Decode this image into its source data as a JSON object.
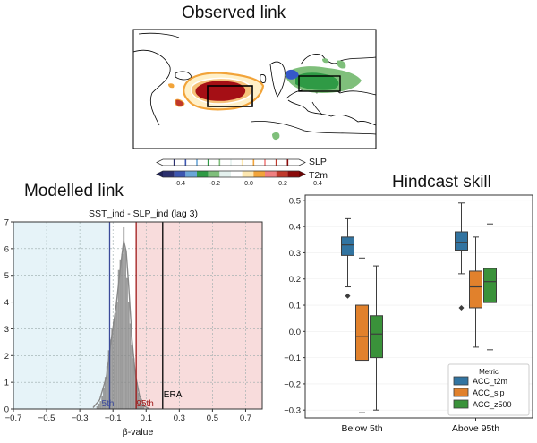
{
  "titles": {
    "observed": "Observed link",
    "modelled": "Modelled link",
    "hindcast": "Hindcast skill"
  },
  "map_panel": {
    "colorbar_labels": [
      "SLP",
      "T2m"
    ],
    "colorbar_ticks": [
      "-0.4",
      "-0.2",
      "0.0",
      "0.2",
      "0.4"
    ],
    "colors": {
      "warm": "#a50f15",
      "orange": "#f2a43a",
      "blue": "#3558c9",
      "green": "#2f9a45",
      "lightgreen": "#7fbf7b"
    }
  },
  "chart_data": [
    {
      "type": "histogram",
      "title": "SST_ind - SLP_ind (lag 3)",
      "xlabel": "β-value",
      "ylabel": "",
      "xlim": [
        -0.7,
        0.8
      ],
      "ylim": [
        0,
        7
      ],
      "xticks": [
        -0.7,
        -0.5,
        -0.3,
        -0.1,
        0.1,
        0.3,
        0.5,
        0.7
      ],
      "yticks": [
        0,
        1,
        2,
        3,
        4,
        5,
        6,
        7
      ],
      "bins": [
        {
          "x": -0.195,
          "h": 0.1
        },
        {
          "x": -0.185,
          "h": 0.2
        },
        {
          "x": -0.175,
          "h": 0.3
        },
        {
          "x": -0.165,
          "h": 0.5
        },
        {
          "x": -0.155,
          "h": 0.8
        },
        {
          "x": -0.145,
          "h": 1.2
        },
        {
          "x": -0.135,
          "h": 1.6
        },
        {
          "x": -0.125,
          "h": 2.2
        },
        {
          "x": -0.115,
          "h": 2.6
        },
        {
          "x": -0.105,
          "h": 3.0
        },
        {
          "x": -0.095,
          "h": 3.3
        },
        {
          "x": -0.085,
          "h": 3.6
        },
        {
          "x": -0.075,
          "h": 4.0
        },
        {
          "x": -0.065,
          "h": 5.2
        },
        {
          "x": -0.055,
          "h": 5.6
        },
        {
          "x": -0.045,
          "h": 5.8
        },
        {
          "x": -0.035,
          "h": 6.8
        },
        {
          "x": -0.025,
          "h": 6.0
        },
        {
          "x": -0.015,
          "h": 4.9
        },
        {
          "x": -0.005,
          "h": 4.0
        },
        {
          "x": 0.005,
          "h": 3.2
        },
        {
          "x": 0.015,
          "h": 2.4
        },
        {
          "x": 0.025,
          "h": 1.9
        },
        {
          "x": 0.035,
          "h": 1.4
        },
        {
          "x": 0.045,
          "h": 1.0
        },
        {
          "x": 0.055,
          "h": 0.6
        },
        {
          "x": 0.065,
          "h": 0.4
        },
        {
          "x": 0.075,
          "h": 0.2
        },
        {
          "x": 0.085,
          "h": 0.1
        }
      ],
      "bin_width": 0.01,
      "density_curve": [
        [
          -0.22,
          0.05
        ],
        [
          -0.18,
          0.35
        ],
        [
          -0.14,
          1.2
        ],
        [
          -0.11,
          2.6
        ],
        [
          -0.08,
          3.9
        ],
        [
          -0.055,
          5.3
        ],
        [
          -0.035,
          6.3
        ],
        [
          -0.02,
          5.9
        ],
        [
          -0.005,
          4.6
        ],
        [
          0.015,
          2.6
        ],
        [
          0.035,
          1.3
        ],
        [
          0.06,
          0.5
        ],
        [
          0.09,
          0.1
        ],
        [
          0.12,
          0.0
        ]
      ],
      "lines": [
        {
          "label": "5th",
          "x": -0.12,
          "color": "#3b4a9a"
        },
        {
          "label": "95th",
          "x": 0.04,
          "color": "#a01919"
        },
        {
          "label": "ERA",
          "x": 0.2,
          "color": "#000000"
        }
      ],
      "shaded_regions": [
        {
          "from": -0.7,
          "to": -0.12,
          "color": "#e6f3f8"
        },
        {
          "from": 0.04,
          "to": 0.8,
          "color": "#f8dcdc"
        }
      ],
      "grid": true
    },
    {
      "type": "box",
      "xlabel": "",
      "ylabel": "",
      "categories": [
        "Below 5th",
        "Above 95th"
      ],
      "ylim": [
        -0.33,
        0.52
      ],
      "yticks": [
        -0.3,
        -0.2,
        -0.1,
        0.0,
        0.1,
        0.2,
        0.3,
        0.4,
        0.5
      ],
      "legend_title": "Metric",
      "legend_position": "lower right",
      "series": [
        {
          "name": "ACC_t2m",
          "color": "#3274a1",
          "boxes": [
            {
              "whislo": 0.17,
              "q1": 0.29,
              "med": 0.33,
              "q3": 0.36,
              "whishi": 0.43,
              "fliers": [
                0.135
              ]
            },
            {
              "whislo": 0.22,
              "q1": 0.31,
              "med": 0.34,
              "q3": 0.38,
              "whishi": 0.49,
              "fliers": [
                0.09
              ]
            }
          ]
        },
        {
          "name": "ACC_slp",
          "color": "#e1812c",
          "boxes": [
            {
              "whislo": -0.31,
              "q1": -0.11,
              "med": -0.02,
              "q3": 0.1,
              "whishi": 0.28,
              "fliers": []
            },
            {
              "whislo": -0.06,
              "q1": 0.09,
              "med": 0.17,
              "q3": 0.23,
              "whishi": 0.36,
              "fliers": []
            }
          ]
        },
        {
          "name": "ACC_z500",
          "color": "#3a923a",
          "boxes": [
            {
              "whislo": -0.3,
              "q1": -0.1,
              "med": -0.01,
              "q3": 0.06,
              "whishi": 0.25,
              "fliers": []
            },
            {
              "whislo": -0.07,
              "q1": 0.11,
              "med": 0.19,
              "q3": 0.24,
              "whishi": 0.41,
              "fliers": []
            }
          ]
        }
      ]
    }
  ]
}
